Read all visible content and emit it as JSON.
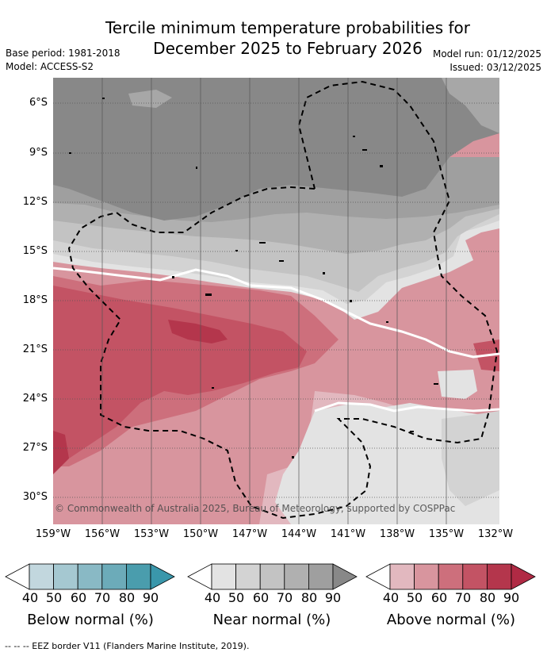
{
  "title_line1": "Tercile minimum temperature probabilities for",
  "title_line2": "December 2025 to February 2026",
  "base_period": "Base period: 1981-2018",
  "model": "Model: ACCESS-S2",
  "model_run": "Model run: 01/12/2025",
  "issued": "Issued: 03/12/2025",
  "copyright": "© Commonwealth of Australia 2025, Bureau of Meteorology, supported by COSPPac",
  "lat_labels": [
    "6°S",
    "9°S",
    "12°S",
    "15°S",
    "18°S",
    "21°S",
    "24°S",
    "27°S",
    "30°S"
  ],
  "lon_labels": [
    "159°W",
    "156°W",
    "153°W",
    "150°W",
    "147°W",
    "144°W",
    "141°W",
    "138°W",
    "135°W",
    "132°W"
  ],
  "legend": {
    "below": {
      "title": "Below normal (%)",
      "ticks": [
        "40",
        "50",
        "60",
        "70",
        "80",
        "90"
      ],
      "colors": [
        "#c2d7de",
        "#a5c8d1",
        "#89b9c5",
        "#6cabb9",
        "#4a9dad"
      ]
    },
    "near": {
      "title": "Near normal (%)",
      "ticks": [
        "40",
        "50",
        "60",
        "70",
        "80",
        "90"
      ],
      "colors": [
        "#e3e3e3",
        "#d3d3d3",
        "#c3c3c3",
        "#b0b0b0",
        "#9f9f9f"
      ]
    },
    "above": {
      "title": "Above normal (%)",
      "ticks": [
        "40",
        "50",
        "60",
        "70",
        "80",
        "90"
      ],
      "colors": [
        "#e2b8bf",
        "#d8959e",
        "#cd6f7c",
        "#c35364",
        "#b4364c"
      ]
    }
  },
  "footer": "--  --  -- EEZ border V11 (Flanders Marine Institute, 2019)."
}
